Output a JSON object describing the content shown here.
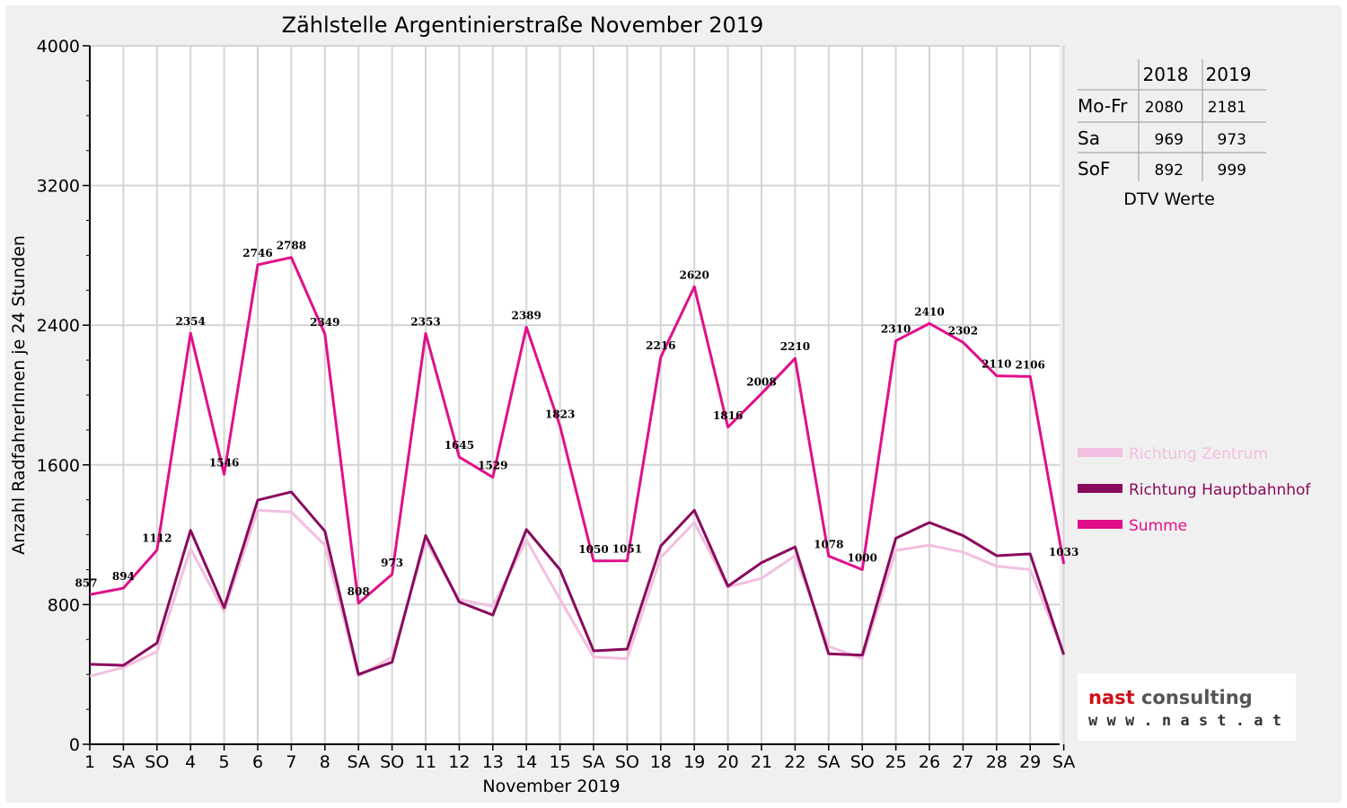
{
  "chart_data": {
    "type": "line",
    "title": "Zählstelle Argentinierstraße November 2019",
    "xlabel": "November 2019",
    "ylabel": "Anzahl RadfahrerInnen je 24 Stunden",
    "ylim": [
      0,
      4000
    ],
    "yticks": [
      0,
      800,
      1600,
      2400,
      3200,
      4000
    ],
    "grid": true,
    "legend_position": "right",
    "categories": [
      "1",
      "SA",
      "SO",
      "4",
      "5",
      "6",
      "7",
      "8",
      "SA",
      "SO",
      "11",
      "12",
      "13",
      "14",
      "15",
      "SA",
      "SO",
      "18",
      "19",
      "20",
      "21",
      "22",
      "SA",
      "SO",
      "25",
      "26",
      "27",
      "28",
      "29",
      "SA"
    ],
    "category_colors": [
      "#e8000b",
      "#000000",
      "#e8000b",
      "#000000",
      "#000000",
      "#000000",
      "#000000",
      "#000000",
      "#000000",
      "#e8000b",
      "#000000",
      "#000000",
      "#000000",
      "#000000",
      "#000000",
      "#000000",
      "#e8000b",
      "#000000",
      "#000000",
      "#000000",
      "#000000",
      "#000000",
      "#000000",
      "#e8000b",
      "#000000",
      "#000000",
      "#000000",
      "#000000",
      "#000000",
      "#000000"
    ],
    "series": [
      {
        "name": "Richtung Zentrum",
        "color": "#f2bfe0",
        "values": [
          390,
          440,
          530,
          1120,
          760,
          1340,
          1330,
          1140,
          390,
          500,
          1160,
          830,
          790,
          1170,
          830,
          500,
          490,
          1070,
          1270,
          900,
          950,
          1080,
          560,
          490,
          1110,
          1140,
          1100,
          1020,
          1000,
          520
        ]
      },
      {
        "name": "Richtung Hauptbahnhof",
        "color": "#8a0a5e",
        "values": [
          458,
          452,
          580,
          1225,
          782,
          1398,
          1445,
          1220,
          400,
          470,
          1195,
          815,
          740,
          1230,
          1000,
          535,
          545,
          1135,
          1340,
          905,
          1040,
          1130,
          518,
          510,
          1180,
          1270,
          1195,
          1080,
          1090,
          513
        ]
      },
      {
        "name": "Summe",
        "color": "#e10f8a",
        "values": [
          857,
          894,
          1112,
          2354,
          1546,
          2746,
          2788,
          2349,
          808,
          973,
          2353,
          1645,
          1529,
          2389,
          1823,
          1050,
          1051,
          2216,
          2620,
          1816,
          2008,
          2210,
          1078,
          1000,
          2310,
          2410,
          2302,
          2110,
          2106,
          1033
        ]
      }
    ],
    "data_labels": [
      857,
      894,
      1112,
      2354,
      1546,
      2746,
      2788,
      2349,
      808,
      973,
      2353,
      1645,
      1529,
      2389,
      1823,
      1050,
      1051,
      2216,
      2620,
      1816,
      2008,
      2210,
      1078,
      1000,
      2310,
      2410,
      2302,
      2110,
      2106,
      1033
    ]
  },
  "table": {
    "headers": [
      "",
      "2018",
      "2019"
    ],
    "rows": [
      [
        "Mo-Fr",
        "2080",
        "2181"
      ],
      [
        "Sa",
        "969",
        "973"
      ],
      [
        "SoF",
        "892",
        "999"
      ]
    ],
    "caption": "DTV Werte"
  },
  "logo": {
    "name": "nast consulting",
    "url": "w w w . n a s t . a t"
  }
}
